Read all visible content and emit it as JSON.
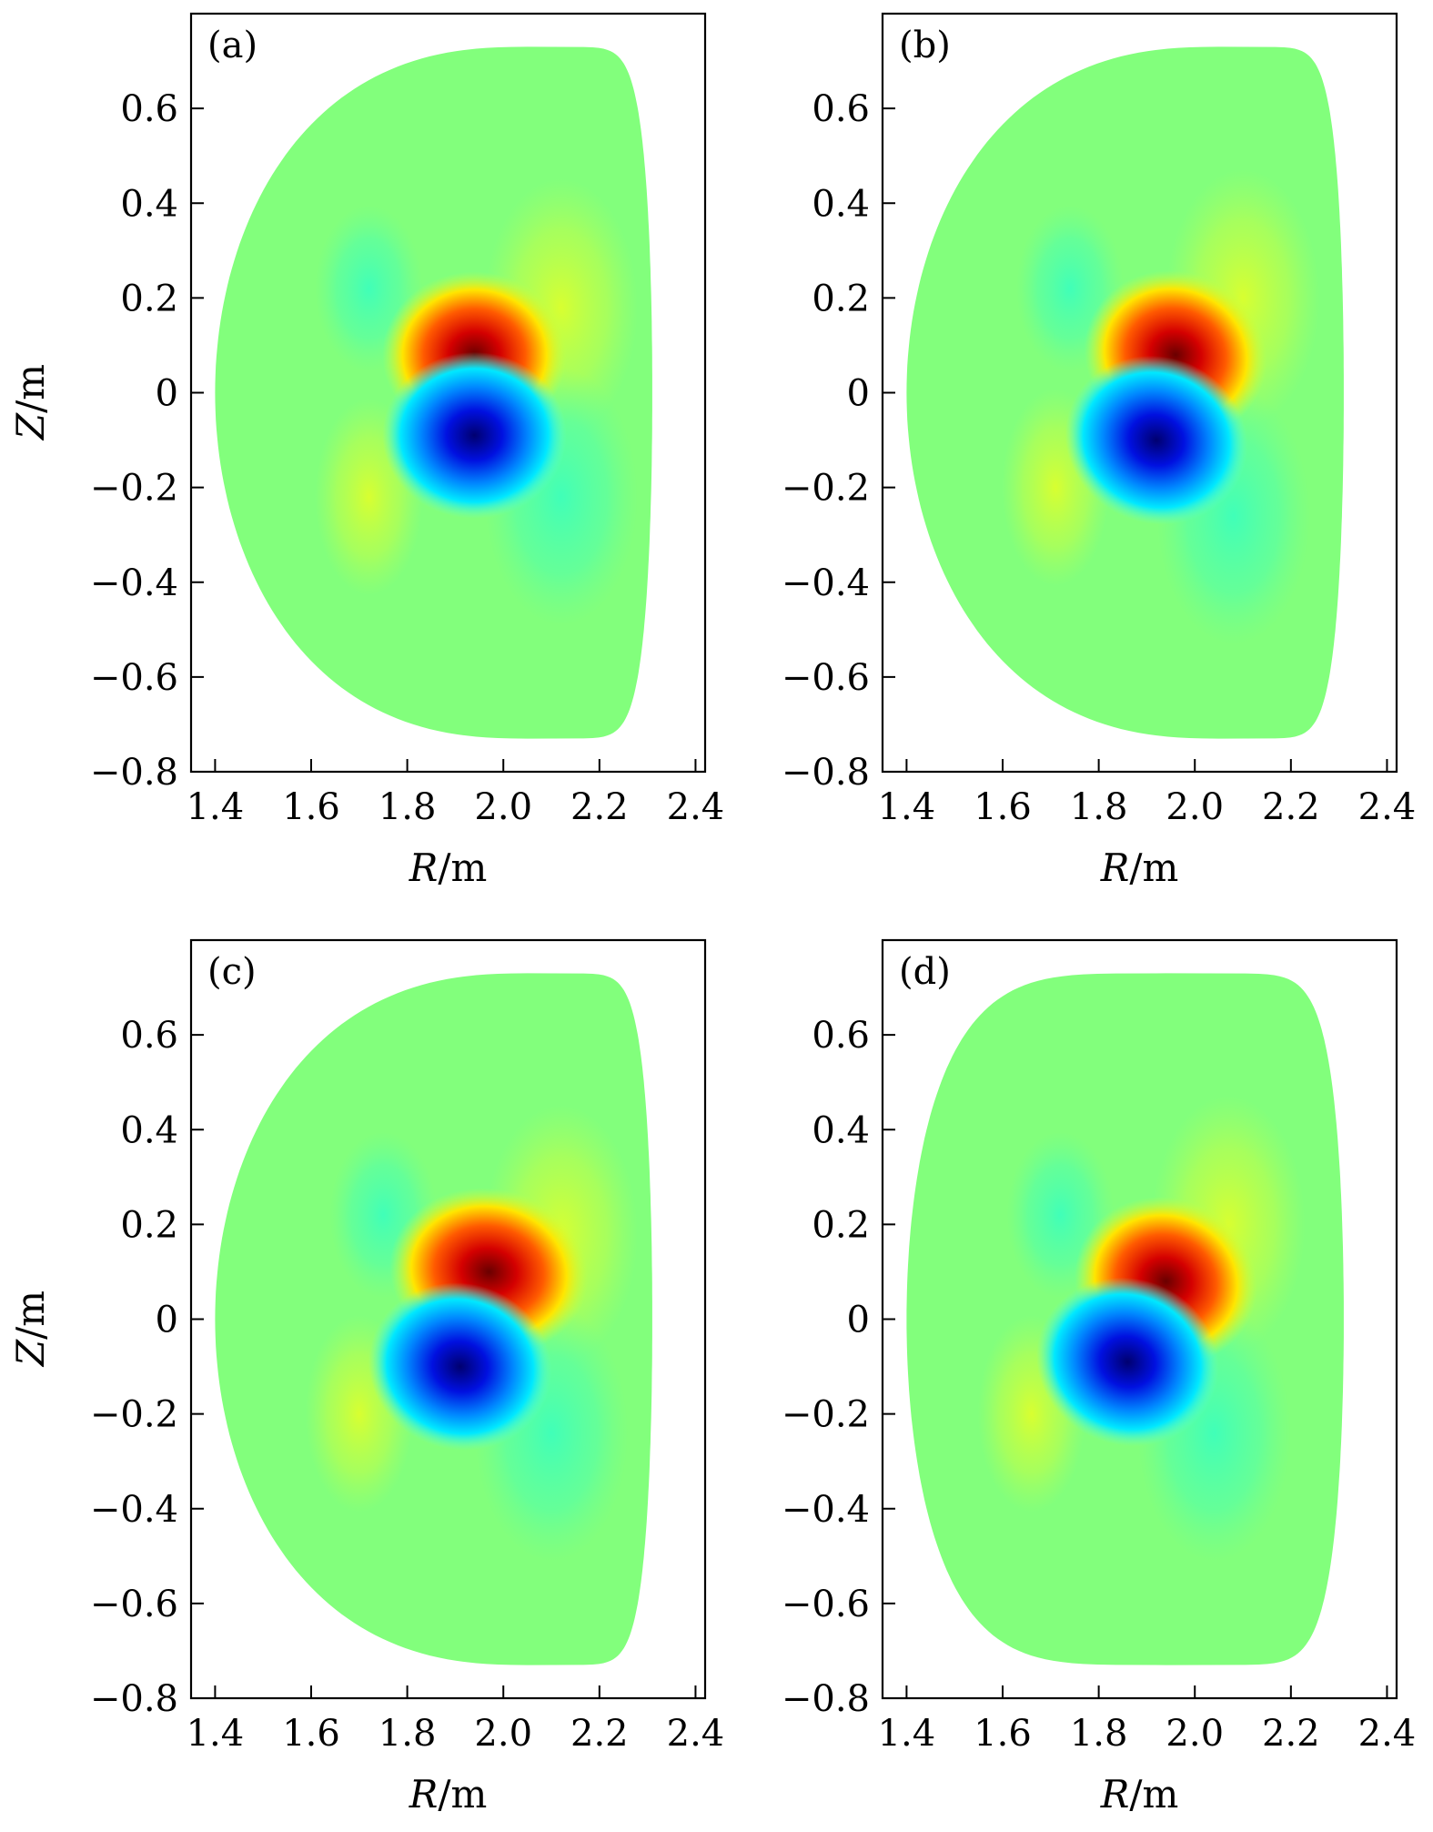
{
  "chart_data": [
    {
      "type": "heatmap",
      "panel_label": "(a)",
      "xlabel": "R/m",
      "ylabel": "Z/m",
      "xlim": [
        1.35,
        2.42
      ],
      "ylim": [
        -0.8,
        0.8
      ],
      "xticks": [
        1.4,
        1.6,
        1.8,
        2.0,
        2.2,
        2.4
      ],
      "yticks": [
        0.6,
        0.4,
        0.2,
        0,
        -0.2,
        -0.4,
        -0.6,
        -0.8
      ],
      "xtick_labels": [
        "1.4",
        "1.6",
        "1.8",
        "2.0",
        "2.2",
        "2.4"
      ],
      "ytick_labels": [
        "0.6",
        "0.4",
        "0.2",
        "0",
        "−0.2",
        "−0.4",
        "−0.6",
        "−0.8"
      ],
      "colormap": "jet",
      "background_color": "#82ff7c",
      "boundary": {
        "r_inner": 1.4,
        "r_outer": 2.31,
        "z_top": 0.73,
        "z_bottom": -0.73,
        "r_top": 2.05,
        "r_bottom": 2.05,
        "left_shape_power": 0.8
      },
      "blobs": [
        {
          "kind": "positive",
          "r": 1.94,
          "z": 0.08,
          "width": 0.12,
          "height": 0.11,
          "rotation": 0,
          "color": "#d60000"
        },
        {
          "kind": "negative",
          "r": 1.94,
          "z": -0.09,
          "width": 0.12,
          "height": 0.11,
          "rotation": 0,
          "color": "#0000d8"
        },
        {
          "kind": "weak_positive",
          "r": 2.12,
          "z": 0.18,
          "width": 0.1,
          "height": 0.17,
          "rotation": 0,
          "color": "#c6ff3c"
        },
        {
          "kind": "weak_negative",
          "r": 1.72,
          "z": 0.22,
          "width": 0.07,
          "height": 0.11,
          "rotation": 0,
          "color": "#4cffb0"
        },
        {
          "kind": "weak_positive",
          "r": 1.72,
          "z": -0.22,
          "width": 0.07,
          "height": 0.13,
          "rotation": 0,
          "color": "#c6ff3c"
        },
        {
          "kind": "weak_negative",
          "r": 2.12,
          "z": -0.22,
          "width": 0.1,
          "height": 0.17,
          "rotation": 0,
          "color": "#4cffb0"
        }
      ]
    },
    {
      "type": "heatmap",
      "panel_label": "(b)",
      "xlabel": "R/m",
      "ylabel": "",
      "xlim": [
        1.35,
        2.42
      ],
      "ylim": [
        -0.8,
        0.8
      ],
      "xticks": [
        1.4,
        1.6,
        1.8,
        2.0,
        2.2,
        2.4
      ],
      "yticks": [
        0.6,
        0.4,
        0.2,
        0,
        -0.2,
        -0.4,
        -0.6,
        -0.8
      ],
      "xtick_labels": [
        "1.4",
        "1.6",
        "1.8",
        "2.0",
        "2.2",
        "2.4"
      ],
      "ytick_labels": [
        "0.6",
        "0.4",
        "0.2",
        "0",
        "−0.2",
        "−0.4",
        "−0.6",
        "−0.8"
      ],
      "colormap": "jet",
      "background_color": "#82ff7c",
      "boundary": {
        "r_inner": 1.4,
        "r_outer": 2.31,
        "z_top": 0.73,
        "z_bottom": -0.73,
        "r_top": 2.05,
        "r_bottom": 2.05,
        "left_shape_power": 0.8
      },
      "blobs": [
        {
          "kind": "positive",
          "r": 1.96,
          "z": 0.08,
          "width": 0.12,
          "height": 0.11,
          "rotation": 20,
          "color": "#d60000"
        },
        {
          "kind": "negative",
          "r": 1.92,
          "z": -0.1,
          "width": 0.12,
          "height": 0.11,
          "rotation": 20,
          "color": "#0000d8"
        },
        {
          "kind": "weak_positive",
          "r": 2.1,
          "z": 0.2,
          "width": 0.1,
          "height": 0.17,
          "rotation": 0,
          "color": "#c6ff3c"
        },
        {
          "kind": "weak_negative",
          "r": 1.74,
          "z": 0.22,
          "width": 0.07,
          "height": 0.11,
          "rotation": 0,
          "color": "#4cffb0"
        },
        {
          "kind": "weak_positive",
          "r": 1.71,
          "z": -0.2,
          "width": 0.07,
          "height": 0.13,
          "rotation": 0,
          "color": "#c6ff3c"
        },
        {
          "kind": "weak_negative",
          "r": 2.08,
          "z": -0.26,
          "width": 0.1,
          "height": 0.17,
          "rotation": 0,
          "color": "#4cffb0"
        }
      ]
    },
    {
      "type": "heatmap",
      "panel_label": "(c)",
      "xlabel": "R/m",
      "ylabel": "Z/m",
      "xlim": [
        1.35,
        2.42
      ],
      "ylim": [
        -0.8,
        0.8
      ],
      "xticks": [
        1.4,
        1.6,
        1.8,
        2.0,
        2.2,
        2.4
      ],
      "yticks": [
        0.6,
        0.4,
        0.2,
        0,
        -0.2,
        -0.4,
        -0.6,
        -0.8
      ],
      "xtick_labels": [
        "1.4",
        "1.6",
        "1.8",
        "2.0",
        "2.2",
        "2.4"
      ],
      "ytick_labels": [
        "0.6",
        "0.4",
        "0.2",
        "0",
        "−0.2",
        "−0.4",
        "−0.6",
        "−0.8"
      ],
      "colormap": "jet",
      "background_color": "#82ff7c",
      "boundary": {
        "r_inner": 1.4,
        "r_outer": 2.31,
        "z_top": 0.73,
        "z_bottom": -0.73,
        "r_top": 2.05,
        "r_bottom": 2.05,
        "left_shape_power": 0.8
      },
      "blobs": [
        {
          "kind": "positive",
          "r": 1.97,
          "z": 0.1,
          "width": 0.13,
          "height": 0.11,
          "rotation": 10,
          "color": "#d60000"
        },
        {
          "kind": "negative",
          "r": 1.91,
          "z": -0.1,
          "width": 0.12,
          "height": 0.11,
          "rotation": 15,
          "color": "#0000d8"
        },
        {
          "kind": "weak_positive",
          "r": 2.12,
          "z": 0.18,
          "width": 0.1,
          "height": 0.17,
          "rotation": 0,
          "color": "#c6ff3c"
        },
        {
          "kind": "weak_negative",
          "r": 1.75,
          "z": 0.22,
          "width": 0.07,
          "height": 0.11,
          "rotation": 0,
          "color": "#4cffb0"
        },
        {
          "kind": "weak_positive",
          "r": 1.7,
          "z": -0.2,
          "width": 0.07,
          "height": 0.13,
          "rotation": 0,
          "color": "#c6ff3c"
        },
        {
          "kind": "weak_negative",
          "r": 2.1,
          "z": -0.24,
          "width": 0.1,
          "height": 0.17,
          "rotation": 0,
          "color": "#4cffb0"
        }
      ]
    },
    {
      "type": "heatmap",
      "panel_label": "(d)",
      "xlabel": "R/m",
      "ylabel": "",
      "xlim": [
        1.35,
        2.42
      ],
      "ylim": [
        -0.8,
        0.8
      ],
      "xticks": [
        1.4,
        1.6,
        1.8,
        2.0,
        2.2,
        2.4
      ],
      "yticks": [
        0.6,
        0.4,
        0.2,
        0,
        -0.2,
        -0.4,
        -0.6,
        -0.8
      ],
      "xtick_labels": [
        "1.4",
        "1.6",
        "1.8",
        "2.0",
        "2.2",
        "2.4"
      ],
      "ytick_labels": [
        "0.6",
        "0.4",
        "0.2",
        "0",
        "−0.2",
        "−0.4",
        "−0.6",
        "−0.8"
      ],
      "colormap": "jet",
      "background_color": "#82ff7c",
      "boundary": {
        "r_inner": 1.4,
        "r_outer": 2.31,
        "z_top": 0.73,
        "z_bottom": -0.73,
        "r_top": 1.94,
        "r_bottom": 1.94,
        "left_shape_power": 0.45
      },
      "blobs": [
        {
          "kind": "positive",
          "r": 1.94,
          "z": 0.08,
          "width": 0.12,
          "height": 0.11,
          "rotation": 20,
          "color": "#d60000"
        },
        {
          "kind": "negative",
          "r": 1.86,
          "z": -0.09,
          "width": 0.12,
          "height": 0.11,
          "rotation": 20,
          "color": "#0000d8"
        },
        {
          "kind": "weak_positive",
          "r": 2.07,
          "z": 0.2,
          "width": 0.1,
          "height": 0.17,
          "rotation": 0,
          "color": "#c6ff3c"
        },
        {
          "kind": "weak_negative",
          "r": 1.72,
          "z": 0.22,
          "width": 0.07,
          "height": 0.11,
          "rotation": 0,
          "color": "#4cffb0"
        },
        {
          "kind": "weak_positive",
          "r": 1.66,
          "z": -0.2,
          "width": 0.07,
          "height": 0.13,
          "rotation": 0,
          "color": "#c6ff3c"
        },
        {
          "kind": "weak_negative",
          "r": 2.04,
          "z": -0.24,
          "width": 0.1,
          "height": 0.17,
          "rotation": 0,
          "color": "#4cffb0"
        }
      ]
    }
  ]
}
